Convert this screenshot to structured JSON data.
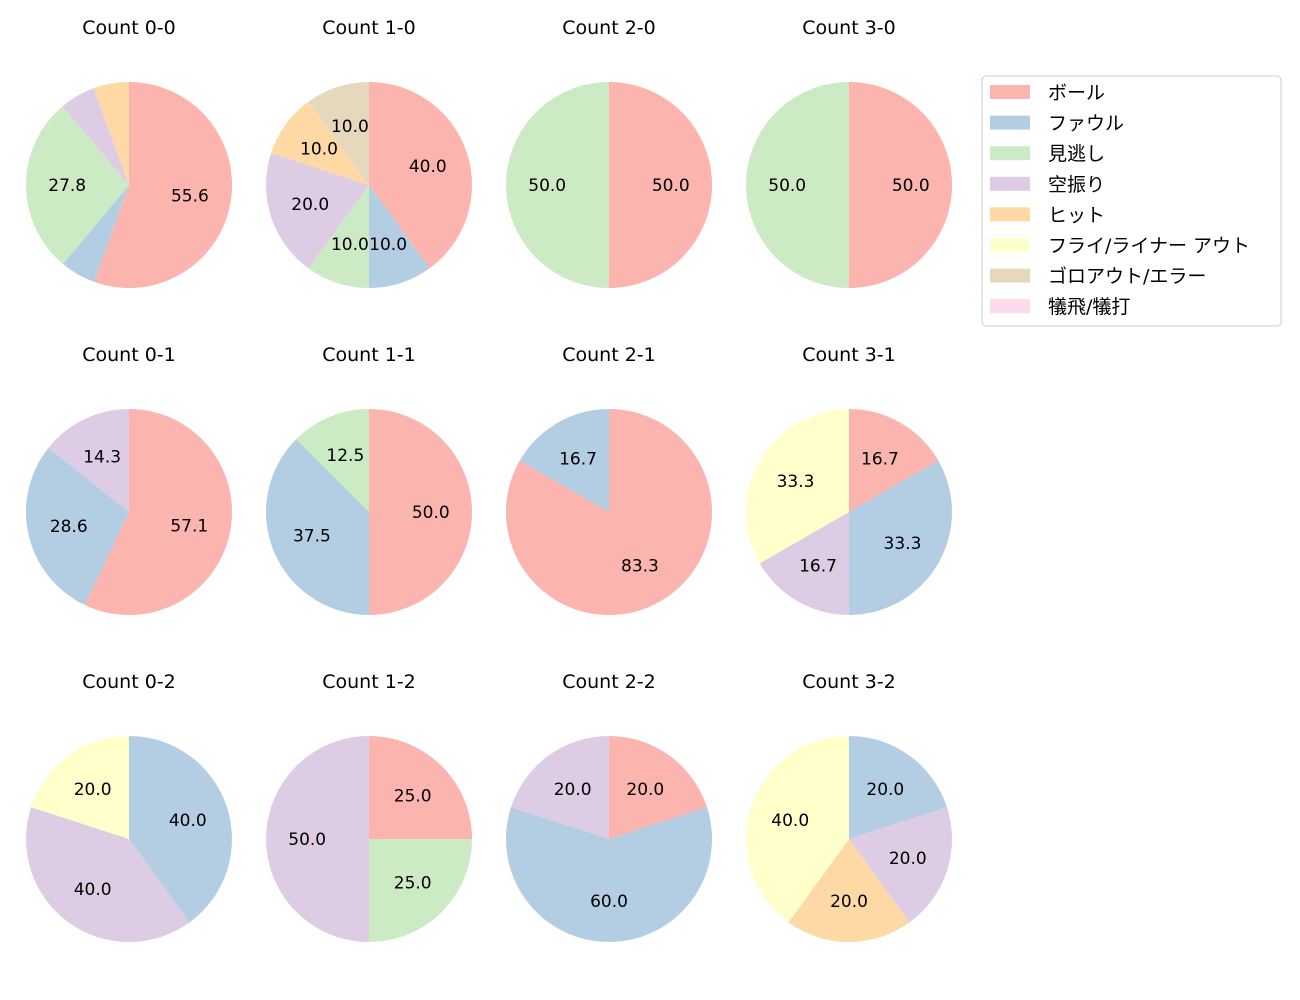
{
  "chart_data": {
    "type": "pie",
    "legend": {
      "placement": "top-right",
      "entries": [
        {
          "label": "ボール",
          "color": "#fbb4ae"
        },
        {
          "label": "ファウル",
          "color": "#b3cde3"
        },
        {
          "label": "見逃し",
          "color": "#ccebc5"
        },
        {
          "label": "空振り",
          "color": "#decbe4"
        },
        {
          "label": "ヒット",
          "color": "#fed9a6"
        },
        {
          "label": "フライ/ライナー アウト",
          "color": "#ffffcc"
        },
        {
          "label": "ゴロアウト/エラー",
          "color": "#e5d8bd"
        },
        {
          "label": "犠飛/犠打",
          "color": "#fddaec"
        }
      ]
    },
    "pies": [
      {
        "title": "Count 0-0",
        "values": [
          55.6,
          5.6,
          27.8,
          5.6,
          5.6,
          0,
          0,
          0
        ]
      },
      {
        "title": "Count 1-0",
        "values": [
          40,
          10,
          10,
          20,
          10,
          0,
          10,
          0
        ]
      },
      {
        "title": "Count 2-0",
        "values": [
          50,
          0,
          50,
          0,
          0,
          0,
          0,
          0
        ]
      },
      {
        "title": "Count 3-0",
        "values": [
          50,
          0,
          50,
          0,
          0,
          0,
          0,
          0
        ]
      },
      {
        "title": "Count 0-1",
        "values": [
          57.1,
          28.6,
          0,
          14.3,
          0,
          0,
          0,
          0
        ]
      },
      {
        "title": "Count 1-1",
        "values": [
          50,
          37.5,
          12.5,
          0,
          0,
          0,
          0,
          0
        ]
      },
      {
        "title": "Count 2-1",
        "values": [
          83.3,
          16.7,
          0,
          0,
          0,
          0,
          0,
          0
        ]
      },
      {
        "title": "Count 3-1",
        "values": [
          16.7,
          33.3,
          0,
          16.7,
          0,
          33.3,
          0,
          0
        ]
      },
      {
        "title": "Count 0-2",
        "values": [
          0,
          40,
          0,
          40,
          0,
          20,
          0,
          0
        ]
      },
      {
        "title": "Count 1-2",
        "values": [
          25,
          0,
          25,
          50,
          0,
          0,
          0,
          0
        ]
      },
      {
        "title": "Count 2-2",
        "values": [
          20,
          60,
          0,
          20,
          0,
          0,
          0,
          0
        ]
      },
      {
        "title": "Count 3-2",
        "values": [
          0,
          20,
          0,
          20,
          20,
          40,
          0,
          0
        ]
      }
    ],
    "label_threshold": 10
  }
}
